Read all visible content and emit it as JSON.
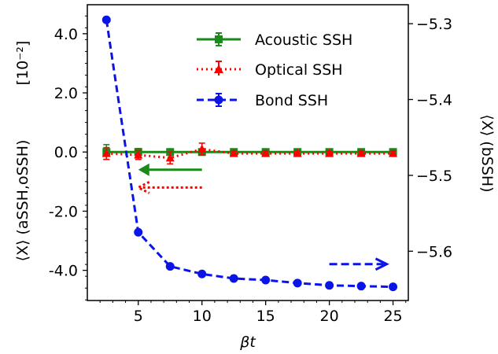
{
  "chart_data": {
    "type": "line",
    "title": "",
    "xlabel": "βt",
    "ylabel_left": "⟨X⟩ (aSSH,oSSH)",
    "ylabel_left_unit": "[10⁻²]",
    "ylabel_right": "⟨X⟩ (bSSH)",
    "x_ticks": [
      5,
      10,
      15,
      20,
      25
    ],
    "x_tick_labels": [
      "5",
      "10",
      "15",
      "20",
      "25"
    ],
    "xlim": [
      1.0,
      26.2
    ],
    "y_left_ticks": [
      4.0,
      2.0,
      0.0,
      -2.0,
      -4.0
    ],
    "y_left_tick_labels": [
      "4.0",
      "2.0",
      "0.0",
      "-2.0",
      "-4.0"
    ],
    "ylim_left": [
      -5.02,
      4.98
    ],
    "y_right_ticks": [
      -5.3,
      -5.4,
      -5.5,
      -5.6
    ],
    "y_right_tick_labels": [
      "−5.3",
      "−5.4",
      "−5.5",
      "−5.6"
    ],
    "ylim_right": [
      -5.665,
      -5.275
    ],
    "legend_position": "top-right",
    "grid": false,
    "series": [
      {
        "name": "Acoustic SSH",
        "axis": "left",
        "color": "#1a8a1a",
        "marker": "square",
        "line": "solid",
        "x": [
          2.5,
          5,
          7.5,
          10,
          12.5,
          15,
          17.5,
          20,
          22.5,
          25
        ],
        "y": [
          0.0,
          0.0,
          0.0,
          0.0,
          0.0,
          0.0,
          0.0,
          0.0,
          0.0,
          0.0
        ],
        "err": [
          0.25,
          0.12,
          0.08,
          0.08,
          0.05,
          0.05,
          0.05,
          0.05,
          0.05,
          0.05
        ]
      },
      {
        "name": "Optical SSH",
        "axis": "left",
        "color": "#ff0000",
        "marker": "triangle",
        "line": "dotted",
        "x": [
          2.5,
          5,
          7.5,
          10,
          12.5,
          15,
          17.5,
          20,
          22.5,
          25
        ],
        "y": [
          -0.05,
          -0.1,
          -0.2,
          0.1,
          -0.05,
          -0.05,
          -0.05,
          -0.05,
          -0.05,
          -0.05
        ],
        "err": [
          0.2,
          0.15,
          0.2,
          0.2,
          0.08,
          0.08,
          0.08,
          0.08,
          0.08,
          0.08
        ]
      },
      {
        "name": "Bond SSH",
        "axis": "right",
        "color": "#0a14e6",
        "marker": "circle",
        "line": "dashed",
        "x": [
          2.5,
          5,
          7.5,
          10,
          12.5,
          15,
          17.5,
          20,
          22.5,
          25
        ],
        "y": [
          -5.295,
          -5.575,
          -5.62,
          -5.63,
          -5.636,
          -5.638,
          -5.642,
          -5.645,
          -5.646,
          -5.647
        ],
        "err": [
          0,
          0,
          0,
          0,
          0,
          0,
          0,
          0,
          0,
          0
        ]
      }
    ],
    "annotations": [
      {
        "name": "acoustic-arrow",
        "color": "#1a8a1a",
        "style": "solid",
        "direction": "left",
        "from": [
          10.0,
          -0.6
        ],
        "to": [
          5.0,
          -0.6
        ],
        "axis": "left"
      },
      {
        "name": "optical-arrow",
        "color": "#ff0000",
        "style": "dotted",
        "direction": "left",
        "from": [
          10.0,
          -1.2
        ],
        "to": [
          5.0,
          -1.2
        ],
        "axis": "left"
      },
      {
        "name": "bond-arrow",
        "color": "#0a14e6",
        "style": "dashed",
        "direction": "right",
        "from": [
          20.0,
          -5.617
        ],
        "to": [
          24.5,
          -5.617
        ],
        "axis": "right"
      }
    ]
  }
}
